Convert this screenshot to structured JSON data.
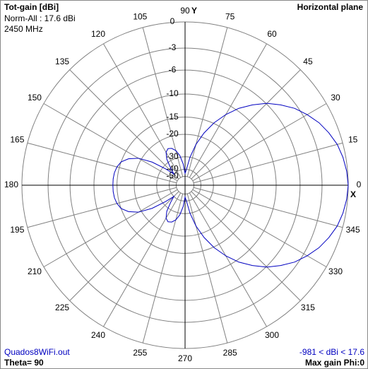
{
  "chart_data": {
    "type": "polar",
    "title": "Tot-gain [dBi]",
    "norm_label": "Norm-All : 17.6 dBi",
    "frequency_label": "2450 MHz",
    "plane_label": "Horizontal plane",
    "file_label": "Quados8WiFi.out",
    "theta_label": "Theta= 90",
    "range_label": "-981 < dBi < 17.6",
    "max_gain_label": "Max gain Phi:0",
    "x_axis_label": "X",
    "y_axis_label": "Y",
    "radial_scale": "arrl",
    "rlim": [
      -50,
      0
    ],
    "rticks": [
      0,
      -3,
      -6,
      -10,
      -15,
      -20,
      -30,
      -40,
      -50
    ],
    "angle_ticks": [
      0,
      15,
      30,
      45,
      60,
      75,
      90,
      105,
      120,
      135,
      150,
      165,
      180,
      195,
      210,
      225,
      240,
      255,
      270,
      285,
      300,
      315,
      330,
      345
    ],
    "color": "#0000c0",
    "x": [
      0,
      5,
      10,
      15,
      20,
      25,
      30,
      35,
      40,
      45,
      50,
      55,
      60,
      65,
      70,
      75,
      80,
      85,
      90,
      95,
      100,
      105,
      110,
      115,
      120,
      125,
      130,
      135,
      140,
      145,
      150,
      155,
      160,
      165,
      170,
      175,
      180,
      185,
      190,
      195,
      200,
      205,
      210,
      215,
      220,
      225,
      230,
      235,
      240,
      245,
      250,
      255,
      260,
      265,
      270,
      275,
      280,
      285,
      290,
      295,
      300,
      305,
      310,
      315,
      320,
      325,
      330,
      335,
      340,
      345,
      350,
      355
    ],
    "values": [
      0,
      -0.1,
      -0.3,
      -0.6,
      -1.1,
      -1.7,
      -2.5,
      -3.4,
      -4.6,
      -5.9,
      -7.6,
      -9.5,
      -11.9,
      -14.8,
      -18.5,
      -23.2,
      -30,
      -40,
      -45,
      -35,
      -29,
      -26,
      -24.5,
      -24,
      -25,
      -28,
      -34,
      -40,
      -32,
      -24,
      -19,
      -16.5,
      -15,
      -14.4,
      -14.1,
      -14,
      -14,
      -14,
      -14.1,
      -14.4,
      -15,
      -16.5,
      -19,
      -24,
      -32,
      -40,
      -34,
      -28,
      -25,
      -24,
      -24.5,
      -26,
      -29,
      -35,
      -45,
      -40,
      -30,
      -23.2,
      -18.5,
      -14.8,
      -11.9,
      -9.5,
      -7.6,
      -5.9,
      -4.6,
      -3.4,
      -2.5,
      -1.7,
      -1.1,
      -0.6,
      -0.3,
      -0.1
    ]
  }
}
